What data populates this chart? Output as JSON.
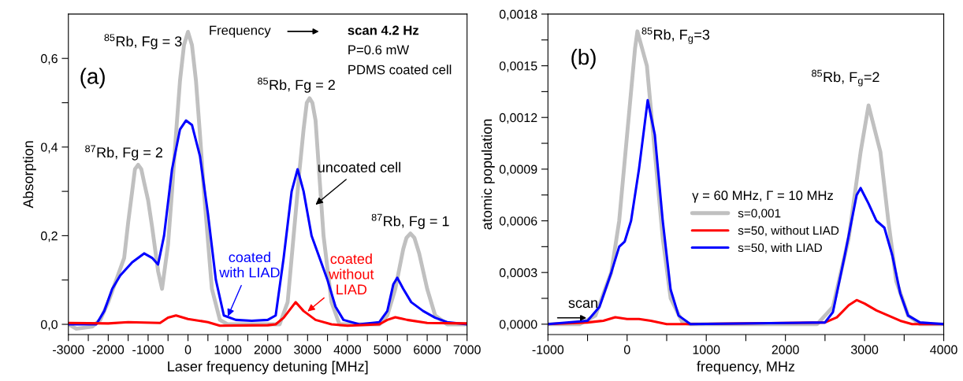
{
  "chart_data": [
    {
      "type": "line",
      "xlabel": "Laser frequency detuning [MHz]",
      "ylabel": "Absorption",
      "legend": false,
      "grid": false,
      "xlim": [
        -3000,
        7000
      ],
      "ylim": [
        -0.023,
        0.7
      ],
      "xticks": [
        -3000,
        {
          "value": -2500,
          "label": null
        },
        -2000,
        {
          "value": -1500,
          "label": null
        },
        -1000,
        {
          "value": -500,
          "label": null
        },
        0,
        {
          "value": 500,
          "label": null
        },
        1000,
        {
          "value": 1500,
          "label": null
        },
        2000,
        {
          "value": 2500,
          "label": null
        },
        3000,
        {
          "value": 3500,
          "label": null
        },
        4000,
        {
          "value": 4500,
          "label": null
        },
        5000,
        {
          "value": 5500,
          "label": null
        },
        6000,
        {
          "value": 6500,
          "label": null
        },
        7000
      ],
      "yticks": [
        {
          "value": 0,
          "label": "0,0"
        },
        {
          "value": 0.1,
          "label": null
        },
        {
          "value": 0.2,
          "label": "0,2"
        },
        {
          "value": 0.3,
          "label": null
        },
        {
          "value": 0.4,
          "label": "0,4"
        },
        {
          "value": 0.5,
          "label": null
        },
        {
          "value": 0.6,
          "label": "0,6"
        }
      ],
      "series": [
        {
          "color": "#c0c0c0",
          "x": [
            -3000,
            -2800,
            -2400,
            -2200,
            -2000,
            -1800,
            -1600,
            -1500,
            -1400,
            -1330,
            -1250,
            -1170,
            -1100,
            -1000,
            -900,
            -750,
            -650,
            -500,
            -400,
            -300,
            -200,
            -100,
            0,
            100,
            200,
            300,
            400,
            600,
            800,
            1000,
            1500,
            2000,
            2300,
            2500,
            2700,
            2800,
            2900,
            2980,
            3050,
            3120,
            3200,
            3300,
            3400,
            3600,
            3800,
            4000,
            4400,
            4800,
            5000,
            5200,
            5400,
            5480,
            5580,
            5680,
            5800,
            6000,
            6200,
            6500,
            7000
          ],
          "values": [
            0.0,
            -0.01,
            -0.005,
            0.01,
            0.05,
            0.1,
            0.15,
            0.23,
            0.3,
            0.35,
            0.36,
            0.35,
            0.32,
            0.28,
            0.22,
            0.12,
            0.08,
            0.18,
            0.3,
            0.43,
            0.55,
            0.63,
            0.66,
            0.63,
            0.55,
            0.43,
            0.3,
            0.08,
            0.01,
            0.0,
            0.0,
            0.0,
            0.0,
            0.05,
            0.25,
            0.35,
            0.44,
            0.5,
            0.51,
            0.5,
            0.46,
            0.33,
            0.2,
            0.05,
            0.0,
            0.0,
            0.0,
            0.0,
            0.02,
            0.08,
            0.17,
            0.195,
            0.205,
            0.195,
            0.16,
            0.08,
            0.02,
            0.0,
            0.0
          ]
        },
        {
          "color": "#0000ff",
          "x": [
            -3000,
            -2300,
            -2100,
            -1900,
            -1700,
            -1400,
            -1100,
            -900,
            -750,
            -600,
            -400,
            -200,
            -50,
            100,
            300,
            500,
            700,
            900,
            1200,
            1600,
            2000,
            2200,
            2400,
            2600,
            2750,
            2900,
            3100,
            3300,
            3500,
            3700,
            3900,
            4300,
            4800,
            5000,
            5150,
            5250,
            5400,
            5600,
            5900,
            6200,
            6500,
            7000
          ],
          "values": [
            0.0,
            0.0,
            0.03,
            0.08,
            0.11,
            0.14,
            0.16,
            0.15,
            0.135,
            0.2,
            0.35,
            0.44,
            0.46,
            0.45,
            0.38,
            0.25,
            0.1,
            0.02,
            0.01,
            0.008,
            0.01,
            0.02,
            0.15,
            0.3,
            0.35,
            0.3,
            0.2,
            0.15,
            0.1,
            0.04,
            0.01,
            0.0,
            0.005,
            0.03,
            0.09,
            0.105,
            0.08,
            0.05,
            0.03,
            0.015,
            0.005,
            0.0
          ]
        },
        {
          "color": "#ff0000",
          "x": [
            -3000,
            -2000,
            -1500,
            -700,
            -500,
            -300,
            0,
            500,
            800,
            2000,
            2200,
            2400,
            2700,
            2900,
            3200,
            3600,
            4000,
            4800,
            5000,
            5200,
            5500,
            6000,
            7000
          ],
          "values": [
            0.003,
            0.002,
            0.005,
            0.003,
            0.015,
            0.02,
            0.012,
            0.005,
            -0.003,
            -0.002,
            0.0,
            0.015,
            0.05,
            0.03,
            0.01,
            0.0,
            -0.003,
            0.0,
            0.01,
            0.016,
            0.01,
            0.003,
            0.002
          ]
        }
      ],
      "annotations": [
        {
          "text": "$^{85}$Rb, Fg = 3",
          "x": 0,
          "y": 0.66
        },
        {
          "text": "$^{87}$Rb, Fg = 2",
          "x": -1250,
          "y": 0.36
        },
        {
          "text": "$^{85}$Rb, Fg = 2",
          "x": 3050,
          "y": 0.51
        },
        {
          "text": "$^{87}$Rb, Fg = 1",
          "x": 5580,
          "y": 0.205
        },
        {
          "text": "uncoated cell",
          "x": 3200,
          "y": 0.27
        },
        {
          "text": "coated\nwith LIAD",
          "x": 1000,
          "y": 0.018
        },
        {
          "text": "coated\nwithout\nLIAD",
          "x": 3000,
          "y": 0.029
        },
        "Frequency",
        "scan 4.2 Hz",
        "P=0.6 mW",
        "PDMS coated cell",
        "(a)"
      ]
    },
    {
      "type": "line",
      "xlabel": "frequency, MHz",
      "ylabel": "atomic population",
      "legend": "center",
      "legend_title": "γ = 60 MHz, Γ = 10 MHz",
      "grid": false,
      "xlim": [
        -1000,
        4000
      ],
      "ylim": [
        -6e-05,
        0.0018
      ],
      "xticks": [
        -1000,
        {
          "value": -500,
          "label": null
        },
        0,
        {
          "value": 500,
          "label": null
        },
        1000,
        {
          "value": 1500,
          "label": null
        },
        2000,
        {
          "value": 2500,
          "label": null
        },
        3000,
        {
          "value": 3500,
          "label": null
        },
        4000
      ],
      "yticks": [
        {
          "value": 0,
          "label": "0,0000"
        },
        {
          "value": 0.00015,
          "label": null
        },
        {
          "value": 0.0003,
          "label": "0,0003"
        },
        {
          "value": 0.00045,
          "label": null
        },
        {
          "value": 0.0006,
          "label": "0,0006"
        },
        {
          "value": 0.00075,
          "label": null
        },
        {
          "value": 0.0009,
          "label": "0,0009"
        },
        {
          "value": 0.00105,
          "label": null
        },
        {
          "value": 0.0012,
          "label": "0,0012"
        },
        {
          "value": 0.00135,
          "label": null
        },
        {
          "value": 0.0015,
          "label": "0,0015"
        },
        {
          "value": 0.00165,
          "label": null
        },
        {
          "value": 0.0018,
          "label": "0,0018"
        }
      ],
      "series": [
        {
          "name": "s=0,001",
          "color": "#c0c0c0",
          "x": [
            -1000,
            -600,
            -400,
            -200,
            -100,
            0,
            100,
            130,
            250,
            350,
            450,
            550,
            700,
            800,
            2400,
            2600,
            2800,
            2950,
            3050,
            3200,
            3300,
            3400,
            3550,
            3700,
            4000
          ],
          "values": [
            0,
            0,
            5e-05,
            0.0003,
            0.0006,
            0.0011,
            0.0016,
            0.0017,
            0.0015,
            0.001,
            0.0005,
            0.00015,
            1e-05,
            0,
            0,
            0.0001,
            0.0005,
            0.001,
            0.00127,
            0.001,
            0.0006,
            0.00025,
            5e-05,
            0,
            0
          ]
        },
        {
          "name": "s=50, without LIAD",
          "color": "#ff0000",
          "x": [
            -1000,
            -500,
            -300,
            -150,
            0,
            150,
            300,
            500,
            700,
            2500,
            2650,
            2800,
            2900,
            3000,
            3150,
            3300,
            3450,
            3600,
            4000
          ],
          "values": [
            0,
            1e-05,
            2e-05,
            4e-05,
            3e-05,
            3e-05,
            2e-05,
            0,
            0,
            1e-05,
            4e-05,
            0.00011,
            0.00014,
            0.00012,
            8e-05,
            5e-05,
            2e-05,
            0,
            0
          ]
        },
        {
          "name": "s=50, with LIAD",
          "color": "#0000ff",
          "x": [
            -1000,
            -500,
            -350,
            -200,
            -100,
            -30,
            50,
            150,
            260,
            350,
            450,
            550,
            650,
            800,
            2500,
            2600,
            2750,
            2900,
            2950,
            3050,
            3150,
            3250,
            3350,
            3450,
            3550,
            3700,
            4000
          ],
          "values": [
            0,
            2e-05,
            0.0001,
            0.0003,
            0.00045,
            0.00048,
            0.0006,
            0.0009,
            0.0013,
            0.0011,
            0.0006,
            0.0002,
            5e-05,
            0,
            1e-05,
            7e-05,
            0.0004,
            0.00075,
            0.00079,
            0.0007,
            0.0006,
            0.00056,
            0.0004,
            0.00018,
            5e-05,
            1e-05,
            0
          ]
        }
      ],
      "annotations": [
        {
          "text": "$^{85}$Rb, F$_{g}$=3",
          "x": 130,
          "y": 0.0017
        },
        {
          "text": "$^{85}$Rb, F$_{g}$=2",
          "x": 3050,
          "y": 0.00127
        },
        "(b)",
        "scan"
      ]
    }
  ]
}
